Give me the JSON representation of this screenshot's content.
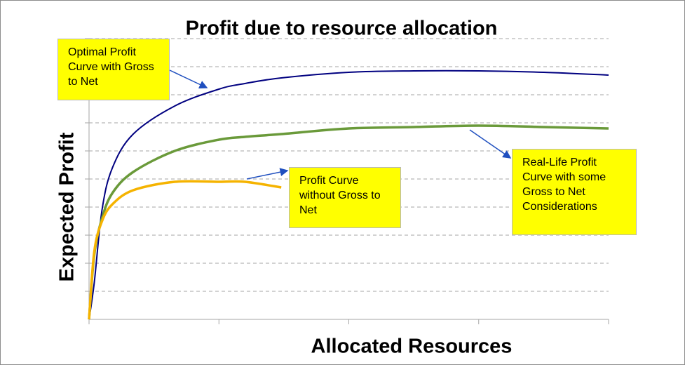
{
  "chart_data": {
    "type": "line",
    "title": "Profit due to resource allocation",
    "x_label": "Allocated Resources",
    "y_label": "Expected Profit",
    "x": [
      0,
      0.04,
      0.1,
      0.18,
      0.34,
      0.66,
      1,
      1.2,
      1.48,
      2,
      2.5,
      3,
      3.5,
      4
    ],
    "series": [
      {
        "color": "#000080",
        "values": [
          0,
          1.3,
          3.9,
          5.4,
          6.6,
          7.6,
          8.2,
          8.4,
          8.6,
          8.8,
          8.85,
          8.85,
          8.8,
          8.7
        ]
      },
      {
        "color": "#6a9a3a",
        "values": [
          0,
          2.3,
          3.6,
          4.5,
          5.25,
          6.0,
          6.4,
          6.5,
          6.6,
          6.8,
          6.85,
          6.9,
          6.85,
          6.8
        ]
      },
      {
        "color": "#f5b300",
        "values": [
          0,
          2.4,
          3.5,
          4.1,
          4.6,
          4.9,
          4.9,
          4.9,
          4.7,
          null,
          null,
          null,
          null,
          null
        ]
      }
    ],
    "xlim": [
      0,
      4
    ],
    "xticks": [
      0,
      1,
      2,
      3,
      4
    ],
    "ylim": [
      0,
      10
    ],
    "yticks": [
      1,
      2,
      3,
      4,
      5,
      6,
      7,
      8,
      9,
      10
    ],
    "grid": true,
    "annotations": [
      "Optimal Profit Curve with Gross to Net",
      "Profit Curve without Gross to Net",
      "Real-Life Profit Curve with some Gross to Net Considerations"
    ]
  }
}
